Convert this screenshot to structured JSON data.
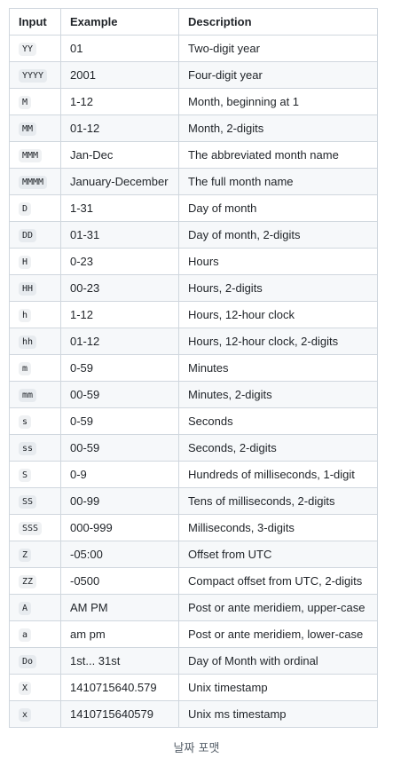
{
  "table": {
    "headers": [
      "Input",
      "Example",
      "Description"
    ],
    "rows": [
      {
        "input": "YY",
        "example": "01",
        "description": "Two-digit year"
      },
      {
        "input": "YYYY",
        "example": "2001",
        "description": "Four-digit year"
      },
      {
        "input": "M",
        "example": "1-12",
        "description": "Month, beginning at 1"
      },
      {
        "input": "MM",
        "example": "01-12",
        "description": "Month, 2-digits"
      },
      {
        "input": "MMM",
        "example": "Jan-Dec",
        "description": "The abbreviated month name"
      },
      {
        "input": "MMMM",
        "example": "January-December",
        "description": "The full month name"
      },
      {
        "input": "D",
        "example": "1-31",
        "description": "Day of month"
      },
      {
        "input": "DD",
        "example": "01-31",
        "description": "Day of month, 2-digits"
      },
      {
        "input": "H",
        "example": "0-23",
        "description": "Hours"
      },
      {
        "input": "HH",
        "example": "00-23",
        "description": "Hours, 2-digits"
      },
      {
        "input": "h",
        "example": "1-12",
        "description": "Hours, 12-hour clock"
      },
      {
        "input": "hh",
        "example": "01-12",
        "description": "Hours, 12-hour clock, 2-digits"
      },
      {
        "input": "m",
        "example": "0-59",
        "description": "Minutes"
      },
      {
        "input": "mm",
        "example": "00-59",
        "description": "Minutes, 2-digits"
      },
      {
        "input": "s",
        "example": "0-59",
        "description": "Seconds"
      },
      {
        "input": "ss",
        "example": "00-59",
        "description": "Seconds, 2-digits"
      },
      {
        "input": "S",
        "example": "0-9",
        "description": "Hundreds of milliseconds, 1-digit"
      },
      {
        "input": "SS",
        "example": "00-99",
        "description": "Tens of milliseconds, 2-digits"
      },
      {
        "input": "SSS",
        "example": "000-999",
        "description": "Milliseconds, 3-digits"
      },
      {
        "input": "Z",
        "example": "-05:00",
        "description": "Offset from UTC"
      },
      {
        "input": "ZZ",
        "example": "-0500",
        "description": "Compact offset from UTC, 2-digits"
      },
      {
        "input": "A",
        "example": "AM PM",
        "description": "Post or ante meridiem, upper-case"
      },
      {
        "input": "a",
        "example": "am pm",
        "description": "Post or ante meridiem, lower-case"
      },
      {
        "input": "Do",
        "example": "1st... 31st",
        "description": "Day of Month with ordinal"
      },
      {
        "input": "X",
        "example": "1410715640.579",
        "description": "Unix timestamp"
      },
      {
        "input": "x",
        "example": "1410715640579",
        "description": "Unix ms timestamp"
      }
    ]
  },
  "caption": "날짜 포맷"
}
